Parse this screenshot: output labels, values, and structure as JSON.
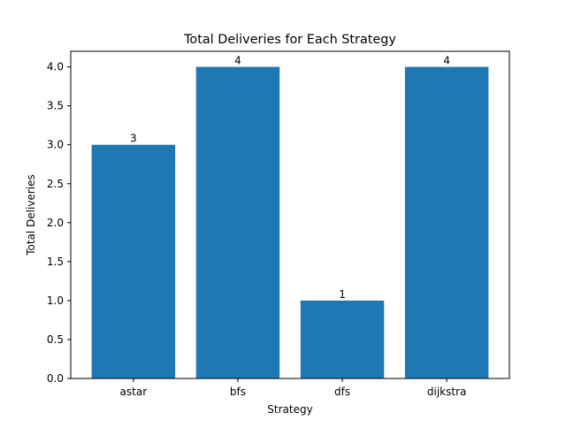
{
  "chart_data": {
    "type": "bar",
    "title": "Total Deliveries for Each Strategy",
    "xlabel": "Strategy",
    "ylabel": "Total Deliveries",
    "categories": [
      "astar",
      "bfs",
      "dfs",
      "dijkstra"
    ],
    "values": [
      3,
      4,
      1,
      4
    ],
    "data_labels": [
      "3",
      "4",
      "1",
      "4"
    ],
    "ylim": [
      0,
      4.2
    ],
    "yticks": [
      0.0,
      0.5,
      1.0,
      1.5,
      2.0,
      2.5,
      3.0,
      3.5,
      4.0
    ],
    "ytick_labels": [
      "0.0",
      "0.5",
      "1.0",
      "1.5",
      "2.0",
      "2.5",
      "3.0",
      "3.5",
      "4.0"
    ],
    "bar_color": "#1f77b4",
    "grid": false,
    "legend": false
  }
}
